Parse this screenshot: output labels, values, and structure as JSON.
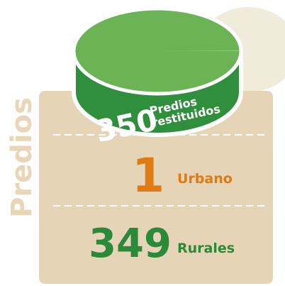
{
  "chart_data": {
    "type": "pie",
    "side_title": "Predios",
    "total": 350,
    "total_label_lines": [
      "Predios",
      "restituidos"
    ],
    "categories": [
      "Urbano",
      "Rurales"
    ],
    "values": [
      1,
      349
    ],
    "colors": [
      "#f2a53a",
      "#6cb356"
    ]
  }
}
